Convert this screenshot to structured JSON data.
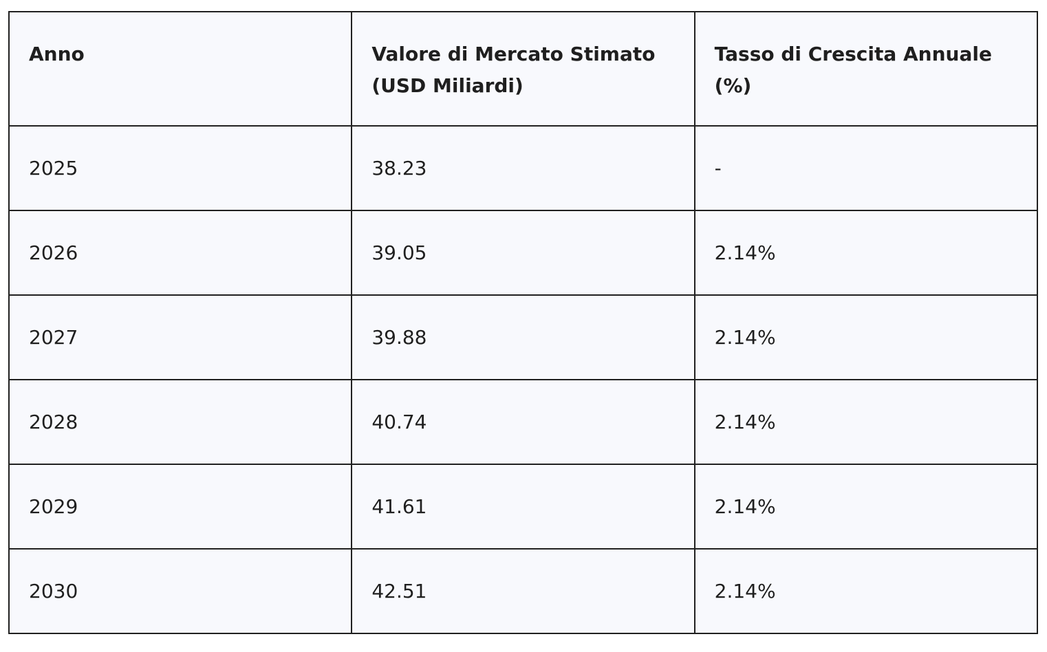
{
  "table": {
    "headers": [
      "Anno",
      "Valore di Mercato Stimato (USD Miliardi)",
      "Tasso di Crescita Annuale (%)"
    ],
    "rows": [
      [
        "2025",
        "38.23",
        "-"
      ],
      [
        "2026",
        "39.05",
        "2.14%"
      ],
      [
        "2027",
        "39.88",
        "2.14%"
      ],
      [
        "2028",
        "40.74",
        "2.14%"
      ],
      [
        "2029",
        "41.61",
        "2.14%"
      ],
      [
        "2030",
        "42.51",
        "2.14%"
      ]
    ]
  }
}
